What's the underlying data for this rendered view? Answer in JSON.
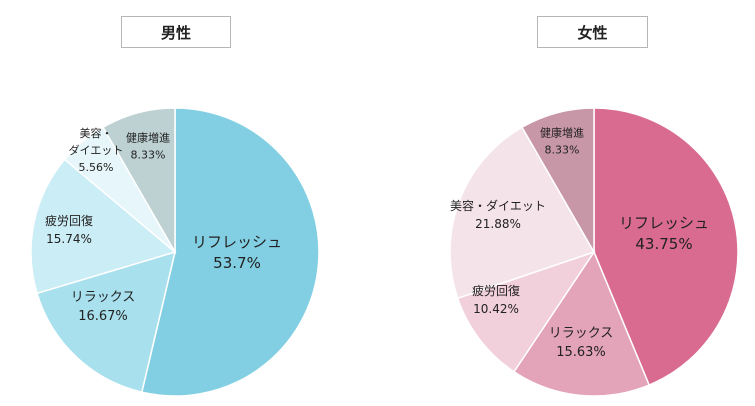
{
  "chart_data": [
    {
      "type": "pie",
      "title": "男性",
      "start_angle": "12 o'clock, clockwise",
      "slices": [
        {
          "label": "リフレッシュ",
          "value": 53.7,
          "display": "53.7%",
          "color": "#82cfe3"
        },
        {
          "label": "リラックス",
          "value": 16.67,
          "display": "16.67%",
          "color": "#a8e0ed"
        },
        {
          "label": "疲労回復",
          "value": 15.74,
          "display": "15.74%",
          "color": "#cbedf5"
        },
        {
          "label": "美容・ダイエット",
          "label_lines": [
            "美容・",
            "ダイエット"
          ],
          "value": 5.56,
          "display": "5.56%",
          "color": "#e6f6fa"
        },
        {
          "label": "健康増進",
          "value": 8.33,
          "display": "8.33%",
          "color": "#bdd0d2"
        }
      ]
    },
    {
      "type": "pie",
      "title": "女性",
      "start_angle": "12 o'clock, clockwise",
      "slices": [
        {
          "label": "リフレッシュ",
          "value": 43.75,
          "display": "43.75%",
          "color": "#d96a90"
        },
        {
          "label": "リラックス",
          "value": 15.63,
          "display": "15.63%",
          "color": "#e3a3b8"
        },
        {
          "label": "疲労回復",
          "value": 10.42,
          "display": "10.42%",
          "color": "#f1cfdb"
        },
        {
          "label": "美容・ダイエット",
          "value": 21.88,
          "display": "21.88%",
          "color": "#f5e3ea"
        },
        {
          "label": "健康増進",
          "value": 8.33,
          "display": "8.33%",
          "color": "#c797a7"
        }
      ]
    }
  ]
}
